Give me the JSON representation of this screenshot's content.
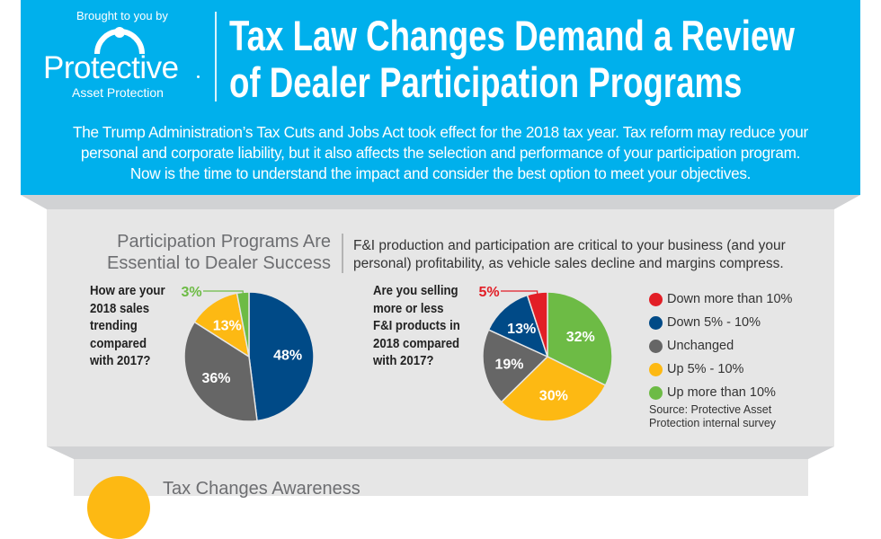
{
  "header": {
    "brought_by": "Brought to you by",
    "logo_name": "Protective",
    "logo_sub": "Asset Protection",
    "title_line1": "Tax Law Changes Demand a Review",
    "title_line2": "of Dealer Participation Programs",
    "intro_line1": "The Trump Administration’s Tax Cuts and Jobs Act took effect for the 2018 tax year. Tax reform may reduce your",
    "intro_line2": "personal and corporate liability, but it also affects the selection and performance of your participation program.",
    "intro_line3": "Now is the time to understand the impact and consider the best option to meet your objectives."
  },
  "colors": {
    "brand_blue": "#00b0ec",
    "red": "#e21e26",
    "navy": "#004a87",
    "gray": "#666666",
    "yellow": "#fdb913",
    "green": "#6dbb45"
  },
  "section1": {
    "heading_line1": "Participation Programs Are",
    "heading_line2": "Essential to Dealer Success",
    "text_line1": "F&I production and participation are critical to your business (and your",
    "text_line2": "personal) profitability, as vehicle sales decline and margins compress.",
    "legend": [
      {
        "label": "Down more than 10%",
        "color": "#e21e26"
      },
      {
        "label": "Down 5% - 10%",
        "color": "#004a87"
      },
      {
        "label": "Unchanged",
        "color": "#666666"
      },
      {
        "label": "Up 5% - 10%",
        "color": "#fdb913"
      },
      {
        "label": "Up more than 10%",
        "color": "#6dbb45"
      }
    ],
    "source_line1": "Source: Protective Asset",
    "source_line2": "Protection internal survey"
  },
  "chart_data": [
    {
      "type": "pie",
      "title": "How are your 2018 sales trending compared with 2017?",
      "question_lines": [
        "How are your",
        "2018 sales",
        "trending",
        "compared",
        "with 2017?"
      ],
      "slices": [
        {
          "label": "Down 5% - 10%",
          "value": 48,
          "text": "48%",
          "color": "#004a87"
        },
        {
          "label": "Unchanged",
          "value": 36,
          "text": "36%",
          "color": "#666666"
        },
        {
          "label": "Up 5% - 10%",
          "value": 13,
          "text": "13%",
          "color": "#fdb913"
        },
        {
          "label": "Up more than 10%",
          "value": 3,
          "text": "3%",
          "color": "#6dbb45",
          "callout": true
        }
      ]
    },
    {
      "type": "pie",
      "title": "Are you selling more or less F&I products in 2018 compared with 2017?",
      "question_lines": [
        "Are you selling",
        "more or less",
        "F&I products in",
        "2018 compared",
        "with 2017?"
      ],
      "slices": [
        {
          "label": "Up more than 10%",
          "value": 32,
          "text": "32%",
          "color": "#6dbb45"
        },
        {
          "label": "Up 5% - 10%",
          "value": 30,
          "text": "30%",
          "color": "#fdb913"
        },
        {
          "label": "Unchanged",
          "value": 19,
          "text": "19%",
          "color": "#666666"
        },
        {
          "label": "Down 5% - 10%",
          "value": 13,
          "text": "13%",
          "color": "#004a87"
        },
        {
          "label": "Down more than 10%",
          "value": 5,
          "text": "5%",
          "color": "#e21e26",
          "callout": true
        }
      ]
    }
  ],
  "section2": {
    "heading": "Tax Changes Awareness"
  }
}
